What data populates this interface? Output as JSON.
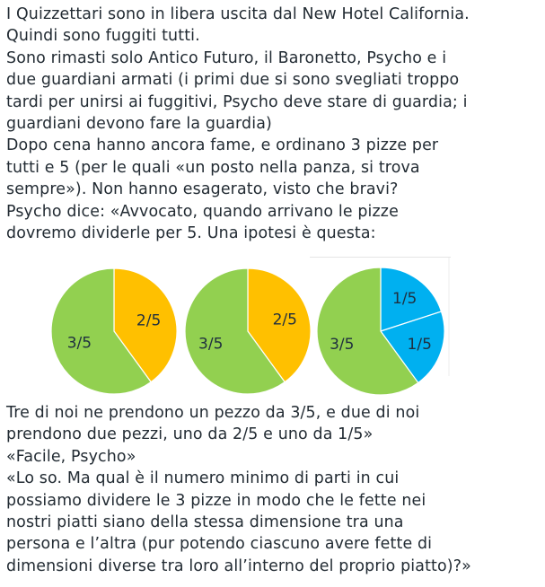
{
  "intro_text": "I Quizzettari sono in libera uscita dal New Hotel California.\nQuindi sono fuggiti tutti.\nSono rimasti solo Antico Futuro, il Baronetto, Psycho e i\ndue guardiani armati (i primi due si sono svegliati troppo\ntardi per unirsi ai fuggitivi, Psycho deve stare di guardia; i\nguardiani devono fare la guardia)\nDopo cena hanno ancora fame, e ordinano 3 pizze per\ntutti e 5 (per le quali «un posto nella panza, si trova\nsempre»). Non hanno esagerato, visto che bravi?\nPsycho dice: «Avvocato, quando arrivano le pizze\ndovremo dividerle per 5. Una ipotesi è questa:",
  "pies": [
    {
      "slices": [
        {
          "label": "2/5",
          "value": 0.4,
          "color": "#ffc000"
        },
        {
          "label": "3/5",
          "value": 0.6,
          "color": "#92d050"
        }
      ]
    },
    {
      "slices": [
        {
          "label": "2/5",
          "value": 0.4,
          "color": "#ffc000"
        },
        {
          "label": "3/5",
          "value": 0.6,
          "color": "#92d050"
        }
      ]
    },
    {
      "slices": [
        {
          "label": "1/5",
          "value": 0.2,
          "color": "#00b0f0"
        },
        {
          "label": "1/5",
          "value": 0.2,
          "color": "#00b0f0"
        },
        {
          "label": "3/5",
          "value": 0.6,
          "color": "#92d050"
        }
      ]
    }
  ],
  "outro_text": "Tre di noi ne prendono un pezzo da 3/5, e due di noi\nprendono due pezzi, uno da 2/5 e uno da 1/5»\n«Facile, Psycho»\n«Lo so. Ma qual è il numero minimo di parti in cui\npossiamo dividere le 3 pizze in modo che le fette nei\nnostri piatti siano della stessa dimensione tra una\npersona e l’altra (pur potendo ciascuno avere fette di\ndimensioni diverse tra loro all’interno del proprio piatto)?»"
}
